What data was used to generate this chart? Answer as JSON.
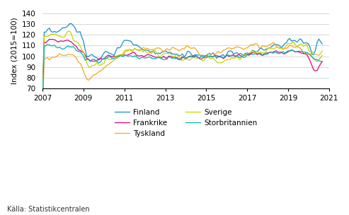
{
  "title": "",
  "ylabel": "Index (2015=100)",
  "xlabel": "",
  "ylim": [
    70,
    140
  ],
  "yticks": [
    70,
    80,
    90,
    100,
    110,
    120,
    130,
    140
  ],
  "xlim": [
    2007.0,
    2021.0
  ],
  "xticks": [
    2007,
    2009,
    2011,
    2013,
    2015,
    2017,
    2019,
    2021
  ],
  "source": "Källa: Statistikcentralen",
  "colors": {
    "Finland": "#1a8fca",
    "Frankrike": "#e6007e",
    "Tyskland": "#f5a623",
    "Sverige": "#c8d400",
    "Storbritannien": "#00b5b5"
  },
  "background_color": "#ffffff",
  "grid_color": "#d0d0d0",
  "figsize": [
    4.93,
    3.04
  ],
  "dpi": 100
}
